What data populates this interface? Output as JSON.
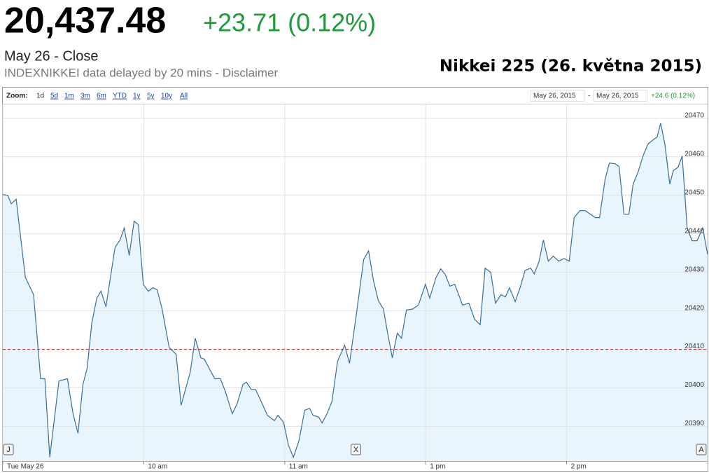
{
  "quote": {
    "price": "20,437.48",
    "change": "+23.71 (0.12%)",
    "status": "May 26 - Close",
    "source": "INDEXNIKKEI data delayed by 20 mins - Disclaimer"
  },
  "toolbar": {
    "zoom_label": "Zoom:",
    "zoom_options": [
      "1d",
      "5d",
      "1m",
      "3m",
      "6m",
      "YTD",
      "1y",
      "5y",
      "10y",
      "All"
    ],
    "range_start": "May 26, 2015",
    "range_separator": "-",
    "range_end": "May 26, 2015",
    "range_change": "+24.6 (0.12%)"
  },
  "chart_data": {
    "type": "line",
    "title": "Nikkei 225 (26. května 2015)",
    "x": [
      0,
      2.1,
      3.6,
      5.7,
      9.6,
      13.1,
      16.1,
      17.9,
      20.0,
      23.9,
      27.5,
      29.9,
      32.0,
      34.1,
      35.9,
      37.9,
      40.0,
      41.8,
      43.9,
      47.8,
      49.9,
      51.7,
      53.8,
      55.9,
      57.7,
      59.8,
      61.9,
      63.9,
      65.7,
      67.8,
      70.8,
      73.8,
      75.9,
      79.8,
      81.9,
      84.3,
      85.7,
      90.2,
      92.6,
      94.7,
      97.7,
      99.8,
      102.2,
      103.7,
      105.8,
      107.6,
      109.7,
      112.6,
      115.6,
      117.1,
      119.5,
      121.6,
      123.7,
      126.1,
      128.5,
      130.6,
      132.1,
      134.5,
      135.9,
      138.0,
      140.1,
      142.5,
      145.5,
      147.6,
      150.6,
      153.6,
      155.7,
      157.8,
      159.8,
      162.0,
      164.0,
      165.8,
      167.9,
      169.7,
      171.8,
      174.5,
      176.9,
      179.9,
      181.7,
      184.4,
      186.4,
      188.2,
      190.3,
      192.4,
      195.7,
      198.4,
      200.8,
      203.2,
      205.3,
      207.7,
      209.7,
      212.1,
      213.9,
      215.7,
      218.1,
      220.2,
      222.3,
      224.7,
      226.2,
      228.3,
      230.1,
      232.2,
      234.3,
      236.6,
      239.0,
      241.1,
      243.2,
      245.6,
      248.0,
      250.1,
      252.2,
      254.0,
      256.4,
      258.2,
      260.6,
      262.3,
      264.4,
      266.5,
      268.3,
      270.4,
      272.5,
      274.6,
      277.0,
      278.5,
      280.0,
      281.8,
      283.9,
      285.4,
      287.4,
      289.2,
      291.3,
      293.4,
      295.5,
      297.9,
      300.0
    ],
    "series": [
      {
        "name": "Nikkei 225",
        "color": "#3a6d99",
        "values": [
          20450.2,
          20450,
          20447.8,
          20449,
          20428.7,
          20424.2,
          20402.4,
          20402.4,
          20382,
          20401.8,
          20402.4,
          20393.3,
          20388.2,
          20400.9,
          20405.1,
          20416.9,
          20423.3,
          20425.1,
          20421.1,
          20436.5,
          20438.4,
          20441.5,
          20434.4,
          20443.3,
          20442.4,
          20426.9,
          20425.1,
          20426,
          20425.5,
          20420.5,
          20410.5,
          20408.7,
          20395.5,
          20404.2,
          20412.9,
          20407.8,
          20407.5,
          20402.4,
          20402.4,
          20399.1,
          20393.3,
          20396,
          20400.9,
          20401.5,
          20399.6,
          20399.6,
          20396.9,
          20392.9,
          20391.5,
          20392.9,
          20391.1,
          20385.1,
          20382,
          20386.4,
          20394.2,
          20394.7,
          20392.9,
          20392.4,
          20390.9,
          20393.3,
          20396.5,
          20406.9,
          20411.1,
          20406.4,
          20419.6,
          20433.3,
          20435.6,
          20427.8,
          20422.7,
          20420.5,
          20413.6,
          20407.8,
          20414.2,
          20412.9,
          20420.2,
          20420.5,
          20421.5,
          20426.9,
          20423.3,
          20428.7,
          20430.9,
          20429.6,
          20426.4,
          20426.9,
          20421.5,
          20422,
          20417.8,
          20416.4,
          20431.1,
          20430,
          20422,
          20424.2,
          20423.6,
          20426,
          20422.4,
          20426,
          20430.5,
          20431.1,
          20429.6,
          20432.9,
          20438.4,
          20432.9,
          20434.2,
          20432.9,
          20433.6,
          20432.9,
          20444.2,
          20446,
          20446,
          20445.1,
          20444.2,
          20444.2,
          20454.2,
          20458.4,
          20458.2,
          20457.5,
          20445.1,
          20445.1,
          20452.9,
          20456,
          20460.2,
          20463.3,
          20464.5,
          20465.1,
          20468.7,
          20463.3,
          20452.9,
          20456.4,
          20457.3,
          20460.2,
          20441.5,
          20438.2,
          20438.2,
          20441.5,
          20434.7
        ]
      }
    ],
    "fill": "#e9f5fc",
    "xlim": [
      0,
      300
    ],
    "xticks": [
      {
        "value": 0,
        "label": "Tue May 26"
      },
      {
        "value": 60,
        "label": "10 am"
      },
      {
        "value": 120,
        "label": "11 am"
      },
      {
        "value": 180,
        "label": "1 pm"
      },
      {
        "value": 240,
        "label": "2 pm"
      }
    ],
    "ylim": [
      20381,
      20473.6
    ],
    "yticks": [
      20390,
      20400,
      20410,
      20420,
      20430,
      20440,
      20450,
      20460,
      20470
    ],
    "grid": true,
    "reference_line": {
      "value": 20410,
      "color": "#b22222"
    },
    "flags": [
      {
        "label": "J",
        "x": 2.4
      },
      {
        "label": "X",
        "x": 150.3
      },
      {
        "label": "A",
        "x": 297.3
      }
    ]
  }
}
